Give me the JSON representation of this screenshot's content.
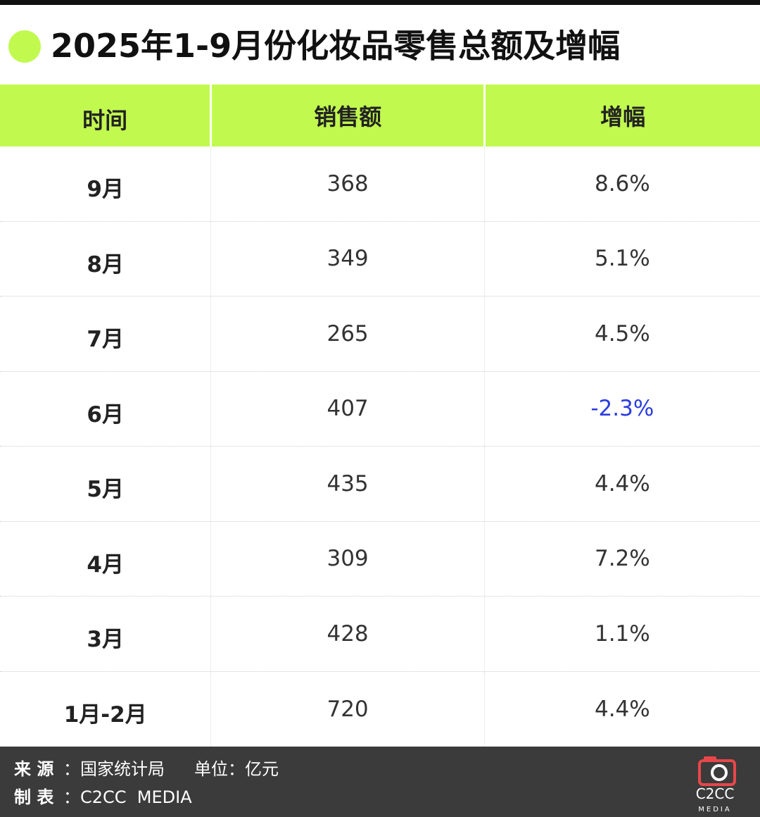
{
  "header": {
    "title": "2025年1-9月份化妆品零售总额及增幅"
  },
  "table": {
    "columns": [
      "时间",
      "销售额",
      "增幅"
    ],
    "rows": [
      [
        "9月",
        "368",
        "8.6%"
      ],
      [
        "8月",
        "349",
        "5.1%"
      ],
      [
        "7月",
        "265",
        "4.5%"
      ],
      [
        "6月",
        "407",
        "-2.3%"
      ],
      [
        "5月",
        "435",
        "4.4%"
      ],
      [
        "4月",
        "309",
        "7.2%"
      ],
      [
        "3月",
        "428",
        "1.1%"
      ],
      [
        "1月-2月",
        "720",
        "4.4%"
      ]
    ]
  },
  "footer": {
    "source_label": "来 源",
    "source": "：国家统计局",
    "unit": "单位：亿元",
    "maker_label": "制 表",
    "maker": "：C2CC  MEDIA",
    "logo": {
      "name": "C2CC",
      "sub": "MEDIA"
    }
  }
}
